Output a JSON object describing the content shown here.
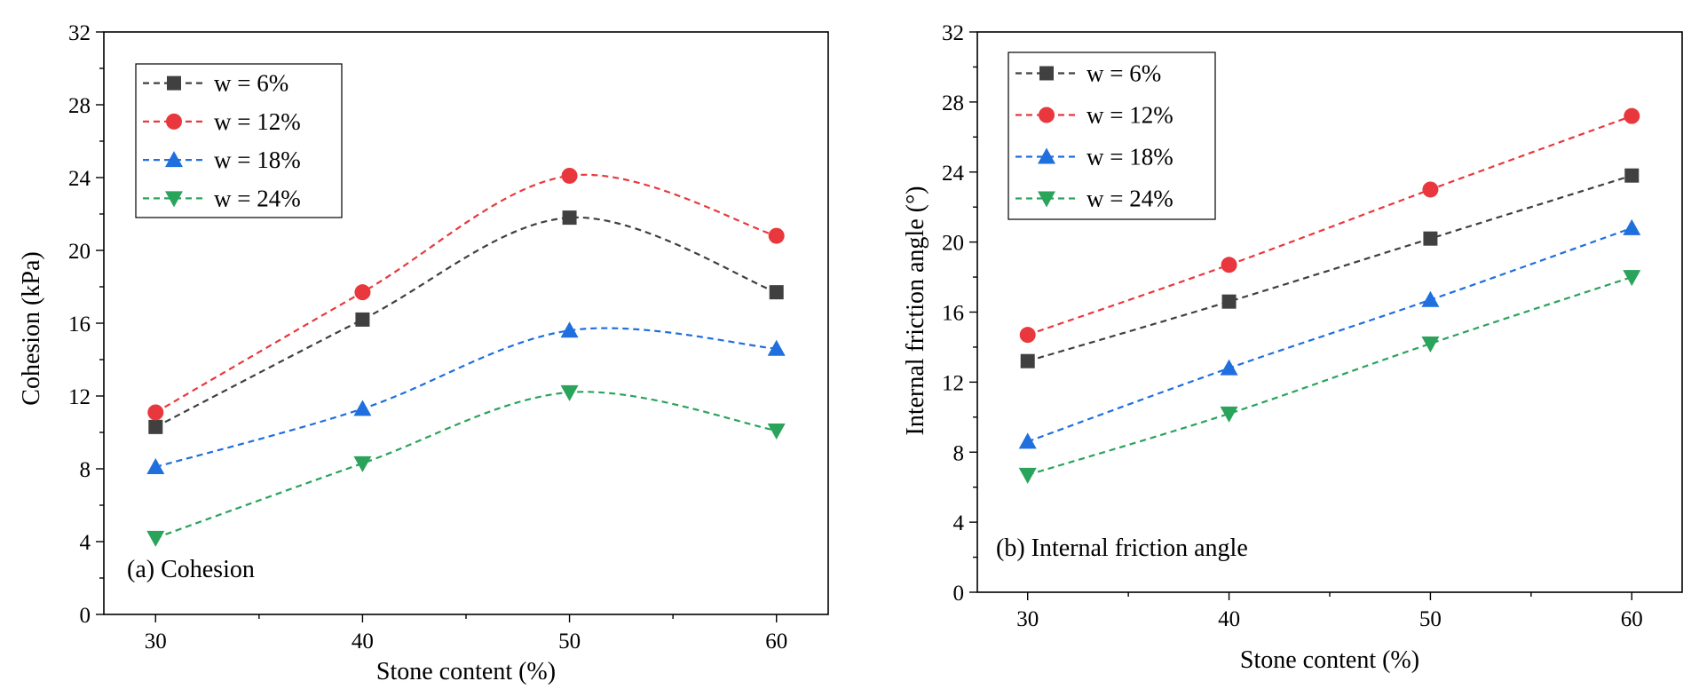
{
  "chart_data": [
    {
      "type": "line",
      "panel_label": "(a) Cohesion",
      "xlabel": "Stone content (%)",
      "ylabel": "Cohesion (kPa)",
      "x": [
        30,
        40,
        50,
        60
      ],
      "xticks": [
        30,
        40,
        50,
        60
      ],
      "xlim": [
        27.5,
        62.5
      ],
      "yticks": [
        0,
        4,
        8,
        12,
        16,
        20,
        24,
        28,
        32
      ],
      "ylim": [
        0,
        32
      ],
      "legend_position": "top-left",
      "series": [
        {
          "name": "w = 6%",
          "color": "#404040",
          "marker": "square",
          "values": [
            10.3,
            16.2,
            21.8,
            17.7
          ]
        },
        {
          "name": "w = 12%",
          "color": "#e8383d",
          "marker": "circle",
          "values": [
            11.1,
            17.7,
            24.1,
            20.8
          ]
        },
        {
          "name": "w = 18%",
          "color": "#1f6fde",
          "marker": "triangle-up",
          "values": [
            8.1,
            11.3,
            15.6,
            14.6
          ]
        },
        {
          "name": "w = 24%",
          "color": "#2aa35b",
          "marker": "triangle-down",
          "values": [
            4.2,
            8.3,
            12.2,
            10.1
          ]
        }
      ]
    },
    {
      "type": "line",
      "panel_label": "(b) Internal friction angle",
      "xlabel": "Stone content (%)",
      "ylabel": "Internal friction angle (°)",
      "x": [
        30,
        40,
        50,
        60
      ],
      "xticks": [
        30,
        40,
        50,
        60
      ],
      "xlim": [
        27.5,
        62.5
      ],
      "yticks": [
        0,
        4,
        8,
        12,
        16,
        20,
        24,
        28,
        32
      ],
      "ylim": [
        0,
        32
      ],
      "legend_position": "top-left",
      "series": [
        {
          "name": "w = 6%",
          "color": "#404040",
          "marker": "square",
          "values": [
            13.2,
            16.6,
            20.2,
            23.8
          ]
        },
        {
          "name": "w = 12%",
          "color": "#e8383d",
          "marker": "circle",
          "values": [
            14.7,
            18.7,
            23.0,
            27.2
          ]
        },
        {
          "name": "w = 18%",
          "color": "#1f6fde",
          "marker": "triangle-up",
          "values": [
            8.6,
            12.8,
            16.7,
            20.8
          ]
        },
        {
          "name": "w = 24%",
          "color": "#2aa35b",
          "marker": "triangle-down",
          "values": [
            6.7,
            10.2,
            14.2,
            18.0
          ]
        }
      ]
    }
  ]
}
